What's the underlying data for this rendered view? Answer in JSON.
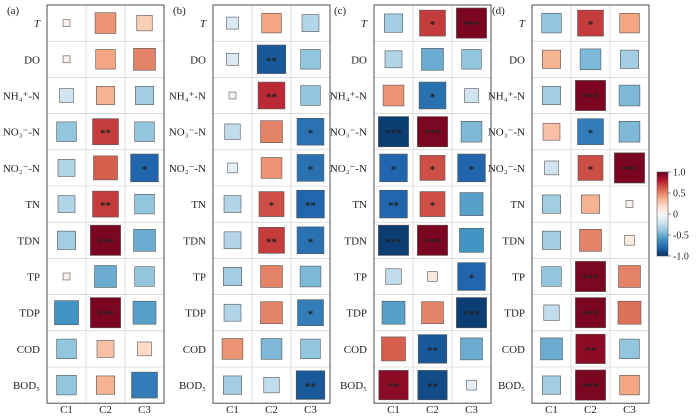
{
  "chart_data": {
    "type": "heatmap",
    "color_scale": {
      "min": -1.0,
      "max": 1.0,
      "ticks": [
        "1.0",
        "0.5",
        "0",
        "-0.5",
        "-1.0"
      ],
      "colors": [
        "#053061",
        "#2166ac",
        "#4393c3",
        "#92c5de",
        "#d1e5f0",
        "#f7f7f7",
        "#fddbc7",
        "#f4a582",
        "#d6604d",
        "#b2182b",
        "#67001f"
      ]
    },
    "rows": [
      "T",
      "DO",
      "NH₄⁺-N",
      "NO₃⁻-N",
      "NO₂⁻-N",
      "TN",
      "TDN",
      "TP",
      "TDP",
      "COD",
      "BOD₅"
    ],
    "columns": [
      "C1",
      "C2",
      "C3"
    ],
    "panels": [
      {
        "label": "(a)",
        "values": [
          [
            0.05,
            0.45,
            0.25
          ],
          [
            0.05,
            0.4,
            0.5
          ],
          [
            -0.2,
            0.35,
            -0.35
          ],
          [
            -0.4,
            0.7,
            -0.4
          ],
          [
            -0.3,
            0.6,
            -0.8
          ],
          [
            -0.3,
            0.7,
            -0.4
          ],
          [
            -0.35,
            0.95,
            -0.5
          ],
          [
            0.05,
            -0.5,
            -0.4
          ],
          [
            -0.6,
            0.95,
            -0.55
          ],
          [
            -0.4,
            0.3,
            0.2
          ],
          [
            -0.4,
            0.35,
            -0.7
          ]
        ],
        "stars": [
          [
            "",
            "",
            ""
          ],
          [
            "",
            "",
            ""
          ],
          [
            "",
            "",
            ""
          ],
          [
            "",
            "**",
            ""
          ],
          [
            "",
            "",
            "*"
          ],
          [
            "",
            "**",
            ""
          ],
          [
            "",
            "***",
            ""
          ],
          [
            "",
            "",
            ""
          ],
          [
            "",
            "***",
            ""
          ],
          [
            "",
            "",
            ""
          ],
          [
            "",
            "",
            ""
          ]
        ]
      },
      {
        "label": "(b)",
        "values": [
          [
            -0.15,
            0.4,
            -0.3
          ],
          [
            -0.15,
            -0.85,
            -0.4
          ],
          [
            0.05,
            0.75,
            -0.4
          ],
          [
            -0.25,
            0.5,
            -0.75
          ],
          [
            -0.1,
            0.45,
            -0.75
          ],
          [
            -0.3,
            0.65,
            -0.8
          ],
          [
            -0.3,
            0.7,
            -0.75
          ],
          [
            -0.35,
            0.5,
            -0.45
          ],
          [
            -0.3,
            0.5,
            -0.7
          ],
          [
            0.45,
            -0.45,
            -0.4
          ],
          [
            -0.35,
            -0.25,
            -0.85
          ]
        ],
        "stars": [
          [
            "",
            "",
            ""
          ],
          [
            "",
            "**",
            ""
          ],
          [
            "",
            "**",
            ""
          ],
          [
            "",
            "",
            "*"
          ],
          [
            "",
            "",
            "*"
          ],
          [
            "",
            "*",
            "**"
          ],
          [
            "",
            "**",
            "*"
          ],
          [
            "",
            "",
            ""
          ],
          [
            "",
            "",
            "*"
          ],
          [
            "",
            "",
            ""
          ],
          [
            "",
            "",
            "**"
          ]
        ]
      },
      {
        "label": "(c)",
        "values": [
          [
            -0.35,
            0.7,
            0.95
          ],
          [
            -0.3,
            -0.5,
            -0.4
          ],
          [
            0.45,
            -0.75,
            -0.2
          ],
          [
            -0.95,
            0.95,
            -0.45
          ],
          [
            -0.8,
            0.65,
            -0.8
          ],
          [
            -0.8,
            0.65,
            -0.55
          ],
          [
            -0.95,
            0.95,
            -0.6
          ],
          [
            -0.25,
            0.1,
            -0.8
          ],
          [
            -0.55,
            0.5,
            -0.95
          ],
          [
            0.6,
            -0.85,
            -0.5
          ],
          [
            0.9,
            -0.9,
            -0.1
          ]
        ],
        "stars": [
          [
            "",
            "*",
            "***"
          ],
          [
            "",
            "",
            ""
          ],
          [
            "",
            "*",
            ""
          ],
          [
            "***",
            "***",
            ""
          ],
          [
            "*",
            "*",
            "*"
          ],
          [
            "**",
            "*",
            ""
          ],
          [
            "***",
            "***",
            ""
          ],
          [
            "",
            "",
            "*"
          ],
          [
            "",
            "",
            "***"
          ],
          [
            "",
            "**",
            ""
          ],
          [
            "**",
            "**",
            ""
          ]
        ]
      },
      {
        "label": "(d)",
        "values": [
          [
            -0.4,
            0.7,
            0.4
          ],
          [
            0.35,
            -0.45,
            -0.35
          ],
          [
            -0.35,
            0.95,
            -0.45
          ],
          [
            0.3,
            -0.7,
            -0.45
          ],
          [
            -0.2,
            0.65,
            0.95
          ],
          [
            -0.35,
            0.35,
            0.05
          ],
          [
            -0.35,
            0.5,
            0.1
          ],
          [
            -0.4,
            0.95,
            0.5
          ],
          [
            -0.25,
            0.95,
            0.55
          ],
          [
            -0.5,
            0.9,
            -0.4
          ],
          [
            -0.35,
            0.95,
            0.4
          ]
        ],
        "stars": [
          [
            "",
            "*",
            ""
          ],
          [
            "",
            "",
            ""
          ],
          [
            "",
            "***",
            ""
          ],
          [
            "",
            "*",
            ""
          ],
          [
            "",
            "*",
            "***"
          ],
          [
            "",
            "",
            ""
          ],
          [
            "",
            "",
            ""
          ],
          [
            "",
            "***",
            ""
          ],
          [
            "",
            "***",
            ""
          ],
          [
            "",
            "**",
            ""
          ],
          [
            "",
            "***",
            ""
          ]
        ]
      }
    ]
  }
}
